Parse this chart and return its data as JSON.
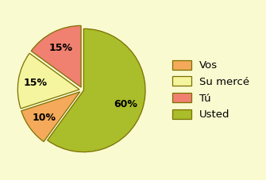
{
  "labels": [
    "Usted",
    "Vos",
    "Su mercé",
    "Tú"
  ],
  "values": [
    60,
    10,
    15,
    15
  ],
  "colors": [
    "#AABD2A",
    "#F5A95A",
    "#F5F5A0",
    "#F08070"
  ],
  "explode": [
    0.02,
    0.05,
    0.05,
    0.05
  ],
  "background_color": "#FAFAD0",
  "edge_color": "#7A7000",
  "edge_width": 0.9,
  "autopct_fontsize": 9,
  "legend_fontsize": 9.5,
  "startangle": 90,
  "counterclock": false,
  "legend_labels": [
    "Vos",
    "Su mercé",
    "Tú",
    "Usted"
  ],
  "legend_colors": [
    "#F5A95A",
    "#F5F5A0",
    "#F08070",
    "#AABD2A"
  ]
}
